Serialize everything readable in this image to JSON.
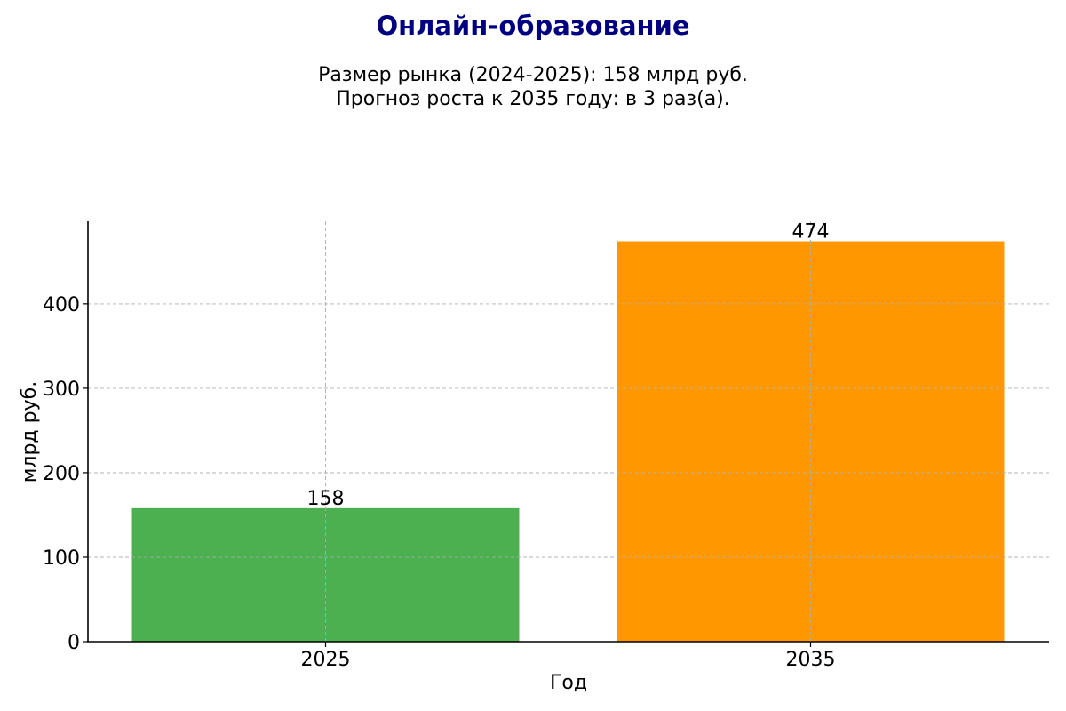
{
  "chart_data": {
    "type": "bar",
    "title": "Онлайн-образование",
    "subtitle_lines": [
      "Размер рынка (2024-2025): 158 млрд руб.",
      "Прогноз роста к 2035 году: в 3 раз(а)."
    ],
    "categories": [
      "2025",
      "2035"
    ],
    "values": [
      158,
      474
    ],
    "data_labels": [
      "158",
      "474"
    ],
    "bar_colors": [
      "#4caf50",
      "#ff9800"
    ],
    "title_color": "#000080",
    "xlabel": "Год",
    "ylabel": "млрд руб.",
    "ylim": [
      0,
      497.7
    ],
    "yticks": [
      0,
      100,
      200,
      300,
      400
    ],
    "grid": true
  }
}
